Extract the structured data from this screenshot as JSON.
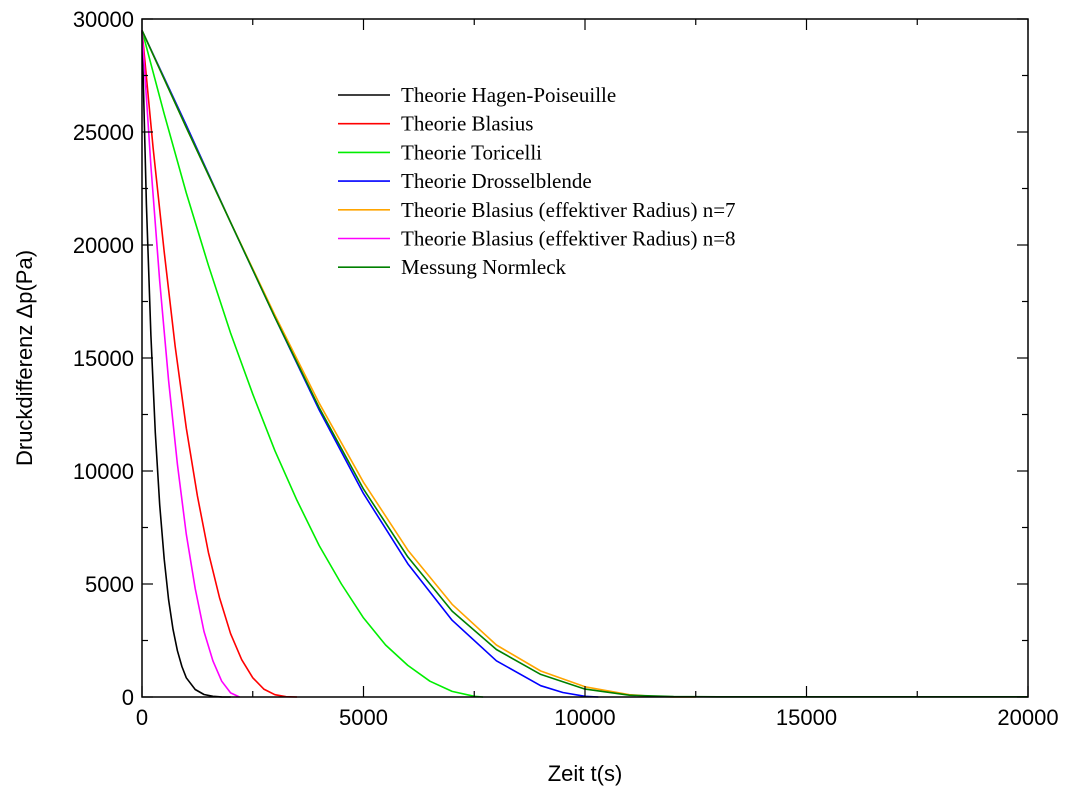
{
  "chart_data": {
    "type": "line",
    "title": "",
    "xlabel": "Zeit t(s)",
    "ylabel": "Druckdifferenz Δp(Pa)",
    "xlim": [
      0,
      20000
    ],
    "ylim": [
      0,
      30000
    ],
    "xticks": [
      0,
      5000,
      10000,
      15000,
      20000
    ],
    "yticks": [
      0,
      5000,
      10000,
      15000,
      20000,
      25000,
      30000
    ],
    "xtick_labels": [
      "0",
      "5000",
      "10000",
      "15000",
      "20000"
    ],
    "ytick_labels": [
      "0",
      "5000",
      "10000",
      "15000",
      "20000",
      "25000",
      "30000"
    ],
    "grid": false,
    "legend_position": "top-center",
    "series": [
      {
        "name": "Theorie Hagen-Poiseuille",
        "color": "#000000",
        "x": [
          0,
          100,
          200,
          300,
          400,
          500,
          600,
          700,
          800,
          900,
          1000,
          1200,
          1400,
          1600,
          1800,
          2000
        ],
        "y": [
          29500,
          21800,
          16000,
          11700,
          8500,
          6100,
          4300,
          3000,
          2050,
          1350,
          850,
          330,
          110,
          30,
          5,
          0
        ]
      },
      {
        "name": "Theorie Blasius",
        "color": "#ff0000",
        "x": [
          0,
          250,
          500,
          750,
          1000,
          1250,
          1500,
          1750,
          2000,
          2250,
          2500,
          2750,
          3000,
          3250,
          3500
        ],
        "y": [
          29500,
          24300,
          19700,
          15500,
          11900,
          8900,
          6400,
          4400,
          2800,
          1650,
          850,
          350,
          100,
          15,
          0
        ]
      },
      {
        "name": "Theorie Toricelli",
        "color": "#00ee00",
        "x": [
          0,
          500,
          1000,
          1500,
          2000,
          2500,
          3000,
          3500,
          4000,
          4500,
          5000,
          5500,
          6000,
          6500,
          7000,
          7500,
          7700
        ],
        "y": [
          29500,
          25800,
          22300,
          19100,
          16100,
          13400,
          10900,
          8700,
          6700,
          5000,
          3500,
          2300,
          1400,
          700,
          250,
          30,
          0
        ]
      },
      {
        "name": "Theorie Drosselblende",
        "color": "#0000ff",
        "x": [
          0,
          1000,
          2000,
          3000,
          4000,
          5000,
          6000,
          7000,
          8000,
          9000,
          9500,
          10000,
          10300
        ],
        "y": [
          29500,
          25300,
          21000,
          16800,
          12700,
          9000,
          5900,
          3400,
          1600,
          500,
          200,
          30,
          0
        ]
      },
      {
        "name": "Theorie Blasius (effektiver Radius) n=7",
        "color": "#ffa500",
        "x": [
          0,
          1000,
          2000,
          3000,
          4000,
          5000,
          6000,
          7000,
          8000,
          9000,
          10000,
          11000,
          11500,
          12000,
          12500
        ],
        "y": [
          29500,
          25200,
          21000,
          16900,
          13000,
          9500,
          6500,
          4100,
          2300,
          1150,
          450,
          100,
          30,
          5,
          0
        ]
      },
      {
        "name": "Theorie Blasius (effektiver Radius) n=8",
        "color": "#ff00ff",
        "x": [
          0,
          200,
          400,
          600,
          800,
          1000,
          1200,
          1400,
          1600,
          1800,
          2000,
          2200
        ],
        "y": [
          29500,
          23500,
          18400,
          14000,
          10300,
          7200,
          4800,
          2900,
          1600,
          700,
          180,
          0
        ]
      },
      {
        "name": "Messung Normleck",
        "color": "#008000",
        "x": [
          0,
          1000,
          2000,
          3000,
          4000,
          5000,
          6000,
          7000,
          8000,
          9000,
          10000,
          11000,
          12000,
          13000,
          14000,
          15000,
          16000,
          17000,
          18000,
          19000,
          20000
        ],
        "y": [
          29500,
          25200,
          21000,
          16800,
          12800,
          9200,
          6200,
          3800,
          2100,
          1000,
          350,
          80,
          20,
          10,
          10,
          10,
          10,
          10,
          10,
          10,
          10
        ]
      }
    ]
  }
}
